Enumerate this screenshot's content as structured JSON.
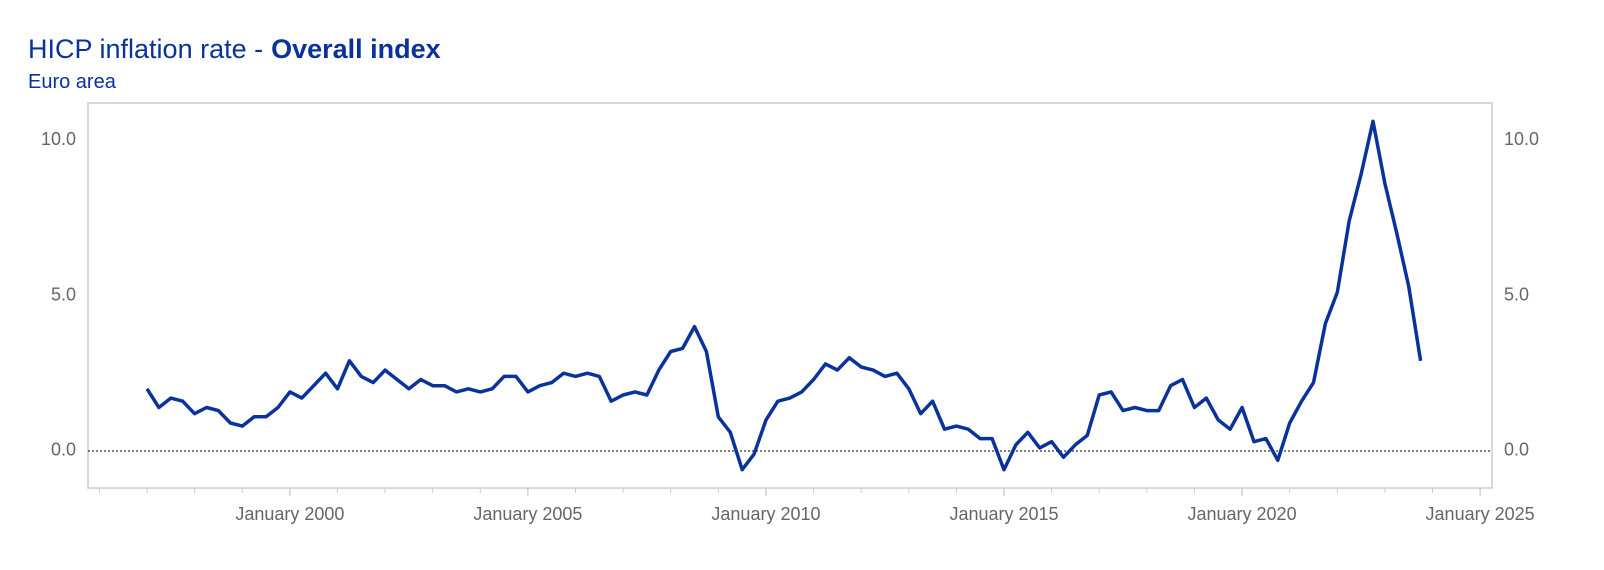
{
  "chart_data": {
    "type": "line",
    "title": [
      "HICP inflation rate -",
      "Overall index"
    ],
    "subtitle": "Euro area",
    "x": [
      1997,
      1997.25,
      1997.5,
      1997.75,
      1998,
      1998.25,
      1998.5,
      1998.75,
      1999,
      1999.25,
      1999.5,
      1999.75,
      2000,
      2000.25,
      2000.5,
      2000.75,
      2001,
      2001.25,
      2001.5,
      2001.75,
      2002,
      2002.25,
      2002.5,
      2002.75,
      2003,
      2003.25,
      2003.5,
      2003.75,
      2004,
      2004.25,
      2004.5,
      2004.75,
      2005,
      2005.25,
      2005.5,
      2005.75,
      2006,
      2006.25,
      2006.5,
      2006.75,
      2007,
      2007.25,
      2007.5,
      2007.75,
      2008,
      2008.25,
      2008.5,
      2008.75,
      2009,
      2009.25,
      2009.5,
      2009.75,
      2010,
      2010.25,
      2010.5,
      2010.75,
      2011,
      2011.25,
      2011.5,
      2011.75,
      2012,
      2012.25,
      2012.5,
      2012.75,
      2013,
      2013.25,
      2013.5,
      2013.75,
      2014,
      2014.25,
      2014.5,
      2014.75,
      2015,
      2015.25,
      2015.5,
      2015.75,
      2016,
      2016.25,
      2016.5,
      2016.75,
      2017,
      2017.25,
      2017.5,
      2017.75,
      2018,
      2018.25,
      2018.5,
      2018.75,
      2019,
      2019.25,
      2019.5,
      2019.75,
      2020,
      2020.25,
      2020.5,
      2020.75,
      2021,
      2021.25,
      2021.5,
      2021.75,
      2022,
      2022.25,
      2022.5,
      2022.75,
      2023,
      2023.25,
      2023.5,
      2023.75
    ],
    "series": [
      {
        "name": "Overall index",
        "color": "#0a3399",
        "values": [
          2.0,
          1.4,
          1.7,
          1.6,
          1.2,
          1.4,
          1.3,
          0.9,
          0.8,
          1.1,
          1.1,
          1.4,
          1.9,
          1.7,
          2.1,
          2.5,
          2.0,
          2.9,
          2.4,
          2.2,
          2.6,
          2.3,
          2.0,
          2.3,
          2.1,
          2.1,
          1.9,
          2.0,
          1.9,
          2.0,
          2.4,
          2.4,
          1.9,
          2.1,
          2.2,
          2.5,
          2.4,
          2.5,
          2.4,
          1.6,
          1.8,
          1.9,
          1.8,
          2.6,
          3.2,
          3.3,
          4.0,
          3.2,
          1.1,
          0.6,
          -0.6,
          -0.1,
          1.0,
          1.6,
          1.7,
          1.9,
          2.3,
          2.8,
          2.6,
          3.0,
          2.7,
          2.6,
          2.4,
          2.5,
          2.0,
          1.2,
          1.6,
          0.7,
          0.8,
          0.7,
          0.4,
          0.4,
          -0.6,
          0.2,
          0.6,
          0.1,
          0.3,
          -0.2,
          0.2,
          0.5,
          1.8,
          1.9,
          1.3,
          1.4,
          1.3,
          1.3,
          2.1,
          2.3,
          1.4,
          1.7,
          1.0,
          0.7,
          1.4,
          0.3,
          0.4,
          -0.3,
          0.9,
          1.6,
          2.2,
          4.1,
          5.1,
          7.4,
          8.9,
          10.6,
          8.6,
          7.0,
          5.3,
          2.9
        ]
      }
    ],
    "xlim": [
      1995.76,
      2025.25
    ],
    "xticks": [
      {
        "value": 2000,
        "label": "January 2000"
      },
      {
        "value": 2005,
        "label": "January 2005"
      },
      {
        "value": 2010,
        "label": "January 2010"
      },
      {
        "value": 2015,
        "label": "January 2015"
      },
      {
        "value": 2020,
        "label": "January 2020"
      },
      {
        "value": 2025,
        "label": "January 2025"
      }
    ],
    "xminorticks": [
      1996,
      1997,
      1998,
      1999,
      2001,
      2002,
      2003,
      2004,
      2006,
      2007,
      2008,
      2009,
      2011,
      2012,
      2013,
      2014,
      2016,
      2017,
      2018,
      2019,
      2021,
      2022,
      2023,
      2024
    ],
    "ylim": [
      -1.19,
      11.19
    ],
    "yticks": [
      {
        "value": 0,
        "label": "0.0"
      },
      {
        "value": 5,
        "label": "5.0"
      },
      {
        "value": 10,
        "label": "10.0"
      }
    ],
    "zero_line": true
  }
}
